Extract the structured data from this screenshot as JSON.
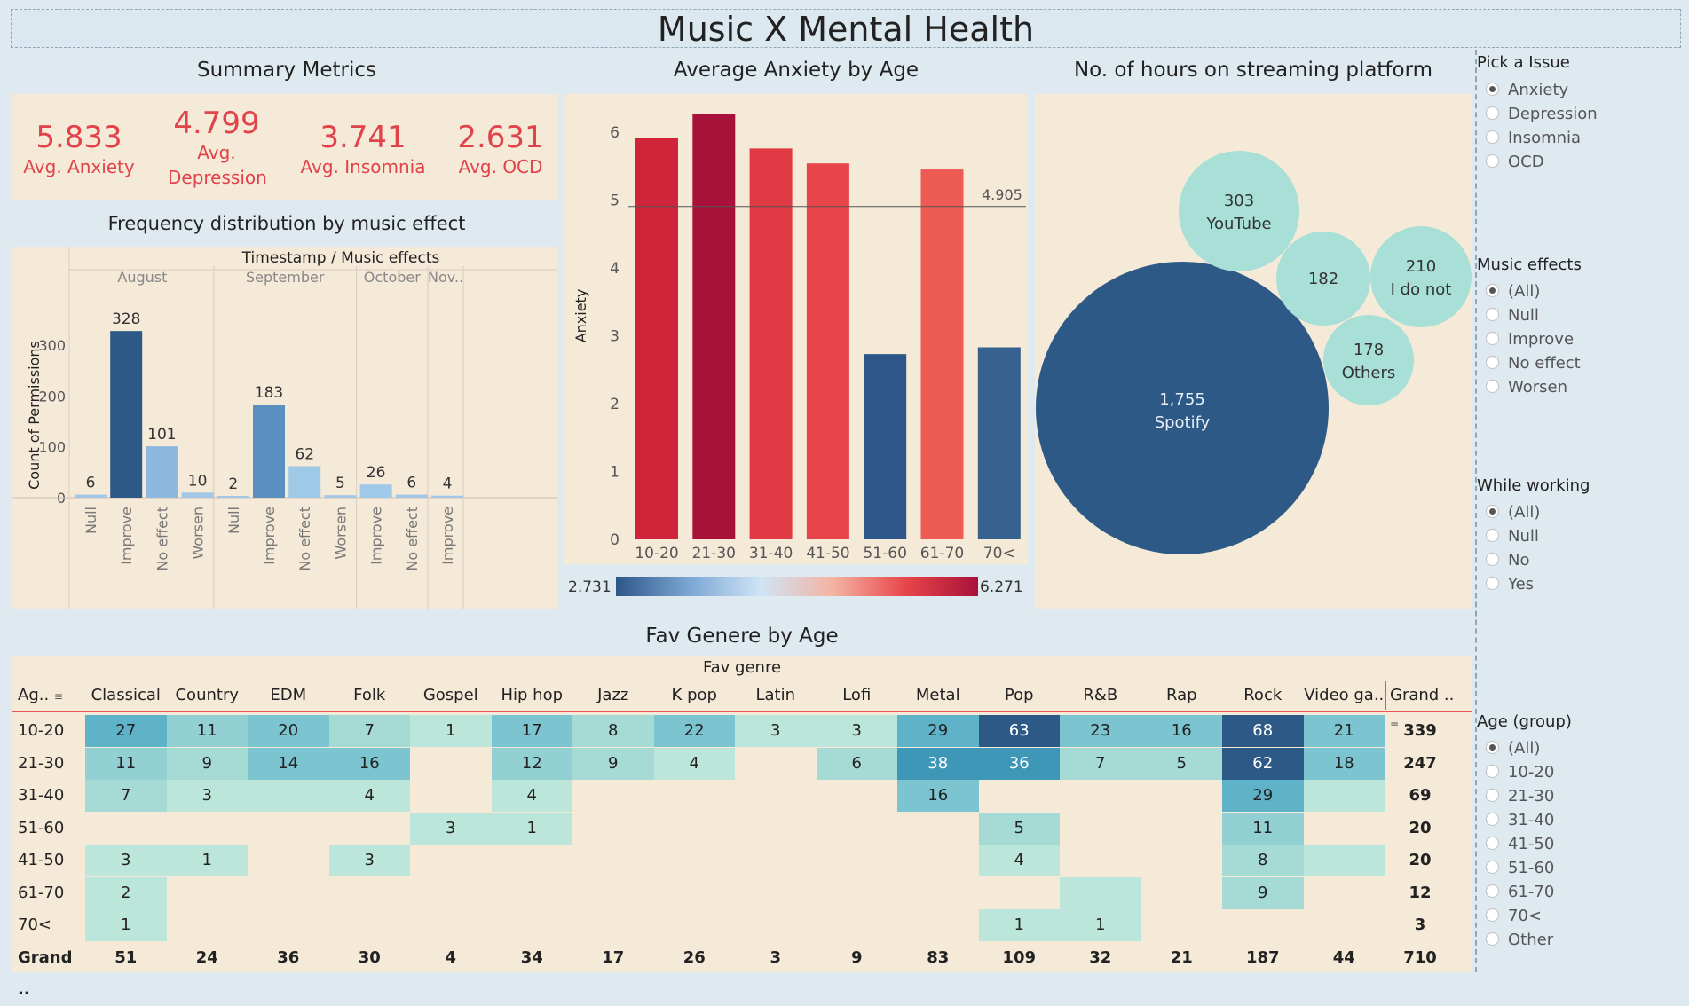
{
  "title": "Music X Mental Health",
  "summary": {
    "title": "Summary Metrics",
    "metrics": [
      {
        "value": "5.833",
        "label": "Avg. Anxiety"
      },
      {
        "value": "4.799",
        "label": "Avg. Depression"
      },
      {
        "value": "3.741",
        "label": "Avg. Insomnia"
      },
      {
        "value": "2.631",
        "label": "Avg. OCD"
      }
    ]
  },
  "freq": {
    "title": "Frequency distribution by music effect",
    "header": "Timestamp  /  Music effects",
    "ylabel": "Count of Permissions",
    "yticks": [
      "300",
      "200",
      "100",
      "0"
    ],
    "months": [
      "August",
      "September",
      "October",
      "Nov.."
    ]
  },
  "anxiety": {
    "title": "Average Anxiety by Age",
    "ylabel": "Anxiety",
    "yticks": [
      "6",
      "5",
      "4",
      "3",
      "2",
      "1",
      "0"
    ],
    "ref_label": "4.905",
    "legend_min": "2.731",
    "legend_max": "6.271"
  },
  "bubbles": {
    "title": "No. of hours on streaming platform",
    "items": [
      {
        "value": "1,755",
        "label": "Spotify",
        "color": "#2d5986"
      },
      {
        "value": "303",
        "label": "YouTube",
        "color": "#a8dfd6"
      },
      {
        "value": "182",
        "label": "",
        "color": "#a8dfd6"
      },
      {
        "value": "210",
        "label": "I do not",
        "color": "#a8dfd6"
      },
      {
        "value": "178",
        "label": "Others",
        "color": "#a8dfd6"
      }
    ]
  },
  "genre": {
    "title": "Fav Genere by Age",
    "header": "Fav genre",
    "age_header": "Ag..",
    "grand_header": "Grand ..",
    "grand_row_label": "Grand ..",
    "columns": [
      "Classical",
      "Country",
      "EDM",
      "Folk",
      "Gospel",
      "Hip hop",
      "Jazz",
      "K pop",
      "Latin",
      "Lofi",
      "Metal",
      "Pop",
      "R&B",
      "Rap",
      "Rock",
      "Video ga.."
    ],
    "rows": [
      {
        "age": "10-20",
        "cells": [
          "27",
          "11",
          "20",
          "7",
          "1",
          "17",
          "8",
          "22",
          "3",
          "3",
          "29",
          "63",
          "23",
          "16",
          "68",
          "21"
        ],
        "total": "339"
      },
      {
        "age": "21-30",
        "cells": [
          "11",
          "9",
          "14",
          "16",
          "",
          "12",
          "9",
          "4",
          "",
          "6",
          "38",
          "36",
          "7",
          "5",
          "62",
          "18"
        ],
        "total": "247"
      },
      {
        "age": "31-40",
        "cells": [
          "7",
          "3",
          "",
          "4",
          "",
          "4",
          "",
          "",
          "",
          "",
          "16",
          "",
          "",
          "",
          "29",
          ""
        ],
        "total": "69"
      },
      {
        "age": "51-60",
        "cells": [
          "",
          "",
          "",
          "",
          "3",
          "1",
          "",
          "",
          "",
          "",
          "",
          "5",
          "",
          "",
          "11",
          ""
        ],
        "total": "20"
      },
      {
        "age": "41-50",
        "cells": [
          "3",
          "1",
          "",
          "3",
          "",
          "",
          "",
          "",
          "",
          "",
          "",
          "4",
          "",
          "",
          "8",
          ""
        ],
        "total": "20"
      },
      {
        "age": "61-70",
        "cells": [
          "2",
          "",
          "",
          "",
          "",
          "",
          "",
          "",
          "",
          "",
          "",
          "",
          "",
          "",
          "9",
          ""
        ],
        "total": "12"
      },
      {
        "age": "70<",
        "cells": [
          "1",
          "",
          "",
          "",
          "",
          "",
          "",
          "",
          "",
          "",
          "",
          "1",
          "1",
          "",
          "",
          ""
        ],
        "total": "3"
      }
    ],
    "grand_totals": [
      "51",
      "24",
      "36",
      "30",
      "4",
      "34",
      "17",
      "26",
      "3",
      "9",
      "83",
      "109",
      "32",
      "21",
      "187",
      "44"
    ],
    "grand_total": "710"
  },
  "filters": {
    "issue": {
      "title": "Pick a Issue",
      "options": [
        "Anxiety",
        "Depression",
        "Insomnia",
        "OCD"
      ],
      "selected": "Anxiety"
    },
    "effects": {
      "title": "Music effects",
      "options": [
        "(All)",
        "Null",
        "Improve",
        "No effect",
        "Worsen"
      ],
      "selected": "(All)"
    },
    "working": {
      "title": "While working",
      "options": [
        "(All)",
        "Null",
        "No",
        "Yes"
      ],
      "selected": "(All)"
    },
    "age": {
      "title": "Age (group)",
      "options": [
        "(All)",
        "10-20",
        "21-30",
        "31-40",
        "41-50",
        "51-60",
        "61-70",
        "70<",
        "Other"
      ],
      "selected": "(All)"
    }
  },
  "chart_data": [
    {
      "type": "bar",
      "title": "Frequency distribution by music effect",
      "ylabel": "Count of Permissions",
      "ylim": [
        0,
        330
      ],
      "categories": [
        "August / Null",
        "August / Improve",
        "August / No effect",
        "August / Worsen",
        "September / Null",
        "September / Improve",
        "September / No effect",
        "September / Worsen",
        "October / Improve",
        "October / No effect",
        "Nov.. / Improve"
      ],
      "tick_labels": [
        "Null",
        "Improve",
        "No effect",
        "Worsen",
        "Null",
        "Improve",
        "No effect",
        "Worsen",
        "Improve",
        "No effect",
        "Improve"
      ],
      "values": [
        6,
        328,
        101,
        10,
        2,
        183,
        62,
        5,
        26,
        6,
        4
      ],
      "colors": [
        "#a3c8e6",
        "#2d5986",
        "#8db9e0",
        "#a3c8e6",
        "#a3c8e6",
        "#5b8fc0",
        "#9ecae8",
        "#a3c8e6",
        "#9ecae8",
        "#a3c8e6",
        "#a3c8e6"
      ]
    },
    {
      "type": "bar",
      "title": "Average Anxiety by Age",
      "ylabel": "Anxiety",
      "ylim": [
        0,
        6.5
      ],
      "categories": [
        "10-20",
        "21-30",
        "31-40",
        "41-50",
        "51-60",
        "61-70",
        "70<"
      ],
      "values": [
        5.92,
        6.27,
        5.76,
        5.54,
        2.73,
        5.45,
        2.83
      ],
      "colors": [
        "#d0243a",
        "#a8123a",
        "#e03a44",
        "#e8454a",
        "#2c5788",
        "#ee5a54",
        "#37628f"
      ],
      "reference_line": 4.905,
      "color_scale": {
        "min": 2.731,
        "max": 6.271
      }
    },
    {
      "type": "table",
      "title": "Fav Genere by Age",
      "note": "heatmap values as listed in genre.rows"
    }
  ]
}
